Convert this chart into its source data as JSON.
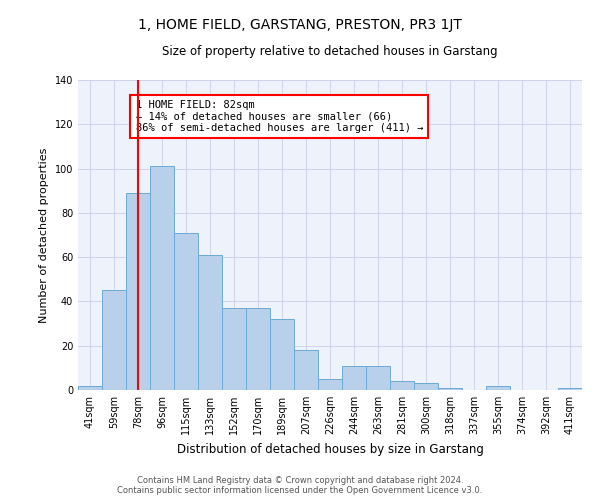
{
  "title": "1, HOME FIELD, GARSTANG, PRESTON, PR3 1JT",
  "subtitle": "Size of property relative to detached houses in Garstang",
  "xlabel": "Distribution of detached houses by size in Garstang",
  "ylabel": "Number of detached properties",
  "categories": [
    "41sqm",
    "59sqm",
    "78sqm",
    "96sqm",
    "115sqm",
    "133sqm",
    "152sqm",
    "170sqm",
    "189sqm",
    "207sqm",
    "226sqm",
    "244sqm",
    "263sqm",
    "281sqm",
    "300sqm",
    "318sqm",
    "337sqm",
    "355sqm",
    "374sqm",
    "392sqm",
    "411sqm"
  ],
  "values": [
    2,
    45,
    89,
    101,
    71,
    61,
    37,
    37,
    32,
    18,
    5,
    11,
    11,
    4,
    3,
    1,
    0,
    2,
    0,
    0,
    1
  ],
  "bar_color": "#b8d0ea",
  "bar_edge_color": "#6aaad4",
  "red_line_x": 2,
  "annotation_text": "1 HOME FIELD: 82sqm\n← 14% of detached houses are smaller (66)\n86% of semi-detached houses are larger (411) →",
  "annotation_box_color": "white",
  "annotation_box_edge_color": "red",
  "footer_line1": "Contains HM Land Registry data © Crown copyright and database right 2024.",
  "footer_line2": "Contains public sector information licensed under the Open Government Licence v3.0.",
  "background_color": "#eef2fb",
  "ylim": [
    0,
    140
  ],
  "grid_color": "#c8d0e8",
  "title_fontsize": 10,
  "subtitle_fontsize": 8.5,
  "ylabel_fontsize": 8,
  "xlabel_fontsize": 8.5,
  "tick_fontsize": 7,
  "footer_fontsize": 6,
  "annot_fontsize": 7.5
}
